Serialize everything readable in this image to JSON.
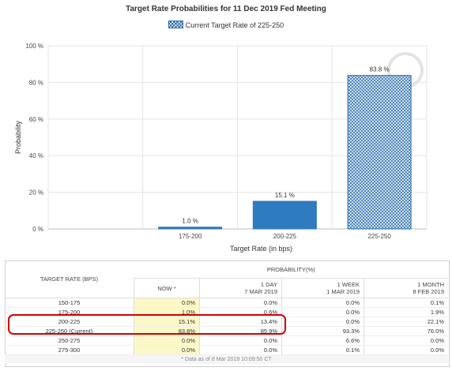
{
  "chart_data": {
    "type": "bar",
    "title": "Target Rate Probabilities for 11 Dec 2019 Fed Meeting",
    "legend": "Current Target Rate of 225-250",
    "xlabel": "Target Rate (in bps)",
    "ylabel": "Probability",
    "ylim": [
      0,
      100
    ],
    "yticks": [
      "0 %",
      "20 %",
      "40 %",
      "60 %",
      "80 %",
      "100 %"
    ],
    "categories": [
      "175-200",
      "200-225",
      "225-250"
    ],
    "values": [
      1.0,
      15.1,
      83.8
    ],
    "labels": [
      "1.0 %",
      "15.1 %",
      "83.8 %"
    ],
    "current_category": "225-250",
    "colors": {
      "bar": "#2f7bbf",
      "current_pattern": "#2b6fb3"
    },
    "grid": true
  },
  "table": {
    "group_header": "PROBABILITY(%)",
    "target_header": "TARGET RATE (BPS)",
    "columns": [
      {
        "line1": "NOW *",
        "line2": ""
      },
      {
        "line1": "1 DAY",
        "line2": "7 MAR 2019"
      },
      {
        "line1": "1 WEEK",
        "line2": "1 MAR 2019"
      },
      {
        "line1": "1 MONTH",
        "line2": "8 FEB 2019"
      }
    ],
    "rows": [
      {
        "rate": "150-175",
        "now": "0.0%",
        "d1": "0.0%",
        "w1": "0.0%",
        "m1": "0.1%"
      },
      {
        "rate": "175-200",
        "now": "1.0%",
        "d1": "0.6%",
        "w1": "0.0%",
        "m1": "1.9%"
      },
      {
        "rate": "200-225",
        "now": "15.1%",
        "d1": "13.4%",
        "w1": "0.0%",
        "m1": "22.1%"
      },
      {
        "rate": "225-250 (Current)",
        "now": "83.8%",
        "d1": "85.9%",
        "w1": "93.3%",
        "m1": "76.0%"
      },
      {
        "rate": "250-275",
        "now": "0.0%",
        "d1": "0.0%",
        "w1": "6.6%",
        "m1": "0.0%"
      },
      {
        "rate": "275-300",
        "now": "0.0%",
        "d1": "0.0%",
        "w1": "0.1%",
        "m1": "0.0%"
      }
    ],
    "footnote": "* Data as of 8 Mar 2019 10:09:50 CT"
  }
}
